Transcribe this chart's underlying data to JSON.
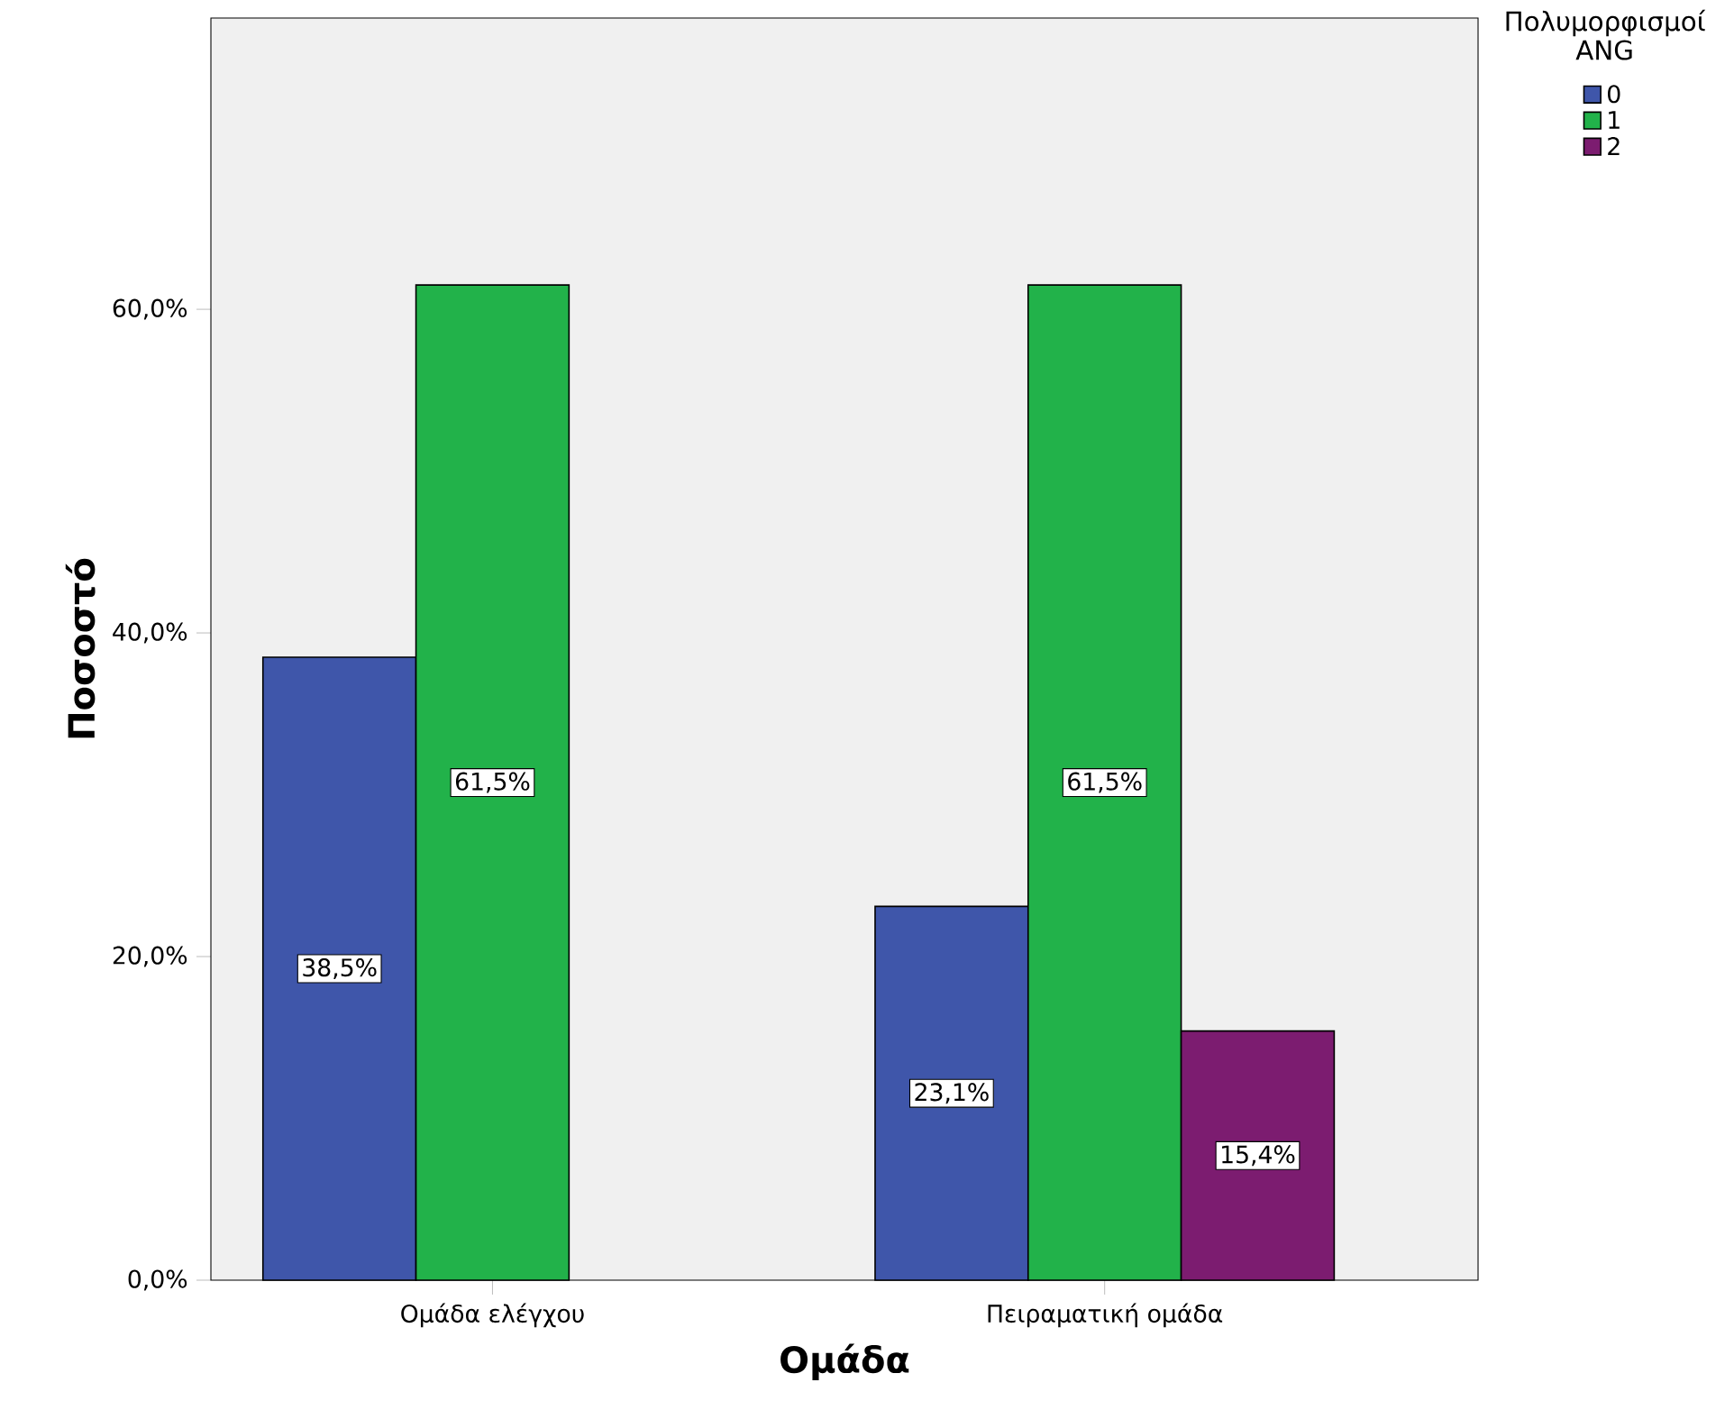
{
  "chart_data": {
    "type": "bar",
    "xlabel": "Ομάδα",
    "ylabel": "Ποσοστό",
    "legend_title": "Πολυμορφισμοί ANG",
    "categories": [
      "Ομάδα ελέγχου",
      "Πειραματική ομάδα"
    ],
    "series": [
      {
        "name": "0",
        "color": "#3f56aa",
        "values": [
          38.5,
          23.1
        ],
        "value_labels": [
          "38,5%",
          "23,1%"
        ]
      },
      {
        "name": "1",
        "color": "#22b24a",
        "values": [
          61.5,
          61.5
        ],
        "value_labels": [
          "61,5%",
          "61,5%"
        ]
      },
      {
        "name": "2",
        "color": "#7c1c70",
        "values": [
          null,
          15.4
        ],
        "value_labels": [
          null,
          "15,4%"
        ]
      }
    ],
    "ylim": [
      0,
      78
    ],
    "yticks": [
      {
        "value": 0,
        "label": "0,0%"
      },
      {
        "value": 20,
        "label": "20,0%"
      },
      {
        "value": 40,
        "label": "40,0%"
      },
      {
        "value": 60,
        "label": "60,0%"
      }
    ],
    "grid": false,
    "legend": "top right"
  }
}
